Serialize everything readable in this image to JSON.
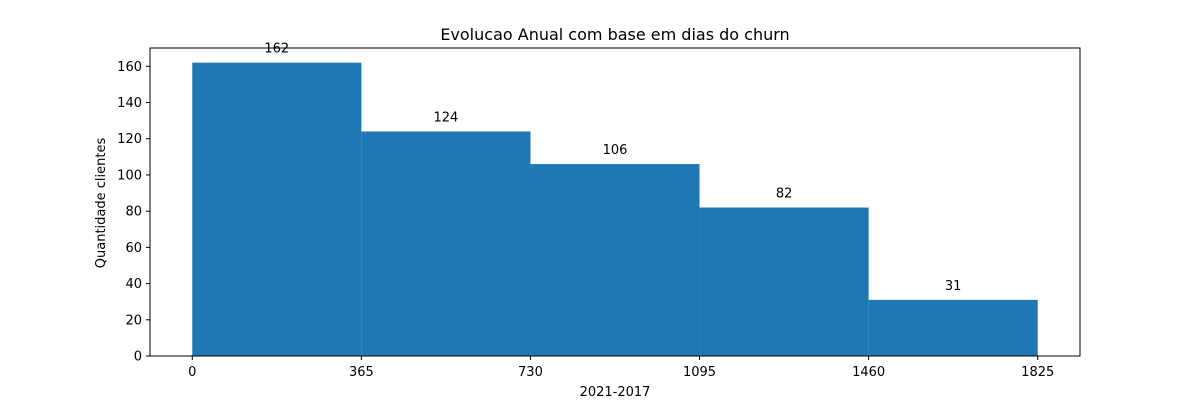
{
  "chart_data": {
    "type": "bar",
    "title": "Evolucao Anual com base em dias do churn",
    "xlabel": "2021-2017",
    "ylabel": "Quantidade clientes",
    "bins": [
      [
        0,
        365
      ],
      [
        365,
        730
      ],
      [
        730,
        1095
      ],
      [
        1095,
        1460
      ],
      [
        1460,
        1825
      ]
    ],
    "values": [
      162,
      124,
      106,
      82,
      31
    ],
    "value_labels": [
      "162",
      "124",
      "106",
      "82",
      "31"
    ],
    "x_ticks": [
      0,
      365,
      730,
      1095,
      1460,
      1825
    ],
    "x_tick_labels": [
      "0",
      "365",
      "730",
      "1095",
      "1460",
      "1825"
    ],
    "y_ticks": [
      0,
      20,
      40,
      60,
      80,
      100,
      120,
      140,
      160
    ],
    "y_tick_labels": [
      "0",
      "20",
      "40",
      "60",
      "80",
      "100",
      "120",
      "140",
      "160"
    ],
    "xlim": [
      -91.25,
      1916.25
    ],
    "ylim": [
      0,
      170.1
    ],
    "bar_color": "#1f77b4",
    "grid": false,
    "legend": "none"
  }
}
